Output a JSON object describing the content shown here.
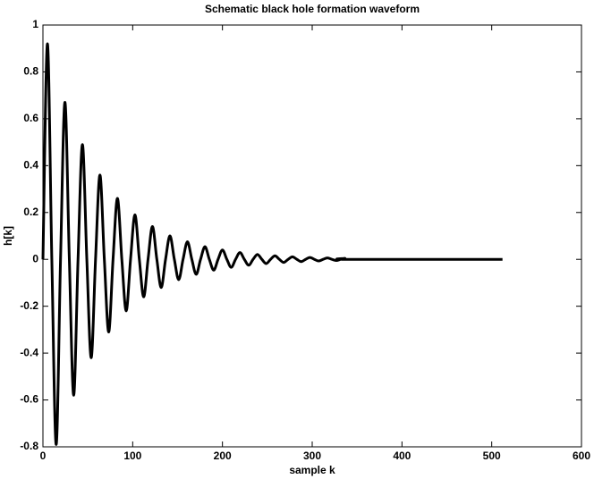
{
  "chart_data": {
    "type": "line",
    "title": "Schematic black hole formation waveform",
    "xlabel": "sample k",
    "ylabel": "h[k]",
    "color": "#000000",
    "x": [
      0,
      5,
      9.9,
      14.75,
      19.6,
      24.5,
      29.4,
      34.25,
      39.1,
      44,
      48.9,
      53.75,
      58.6,
      63.5,
      68.4,
      73.25,
      78.1,
      83,
      87.9,
      92.75,
      97.6,
      102.5,
      107.4,
      112.25,
      117.1,
      122,
      126.9,
      131.75,
      136.6,
      141.5,
      146.4,
      151.25,
      156.1,
      161,
      165.9,
      170.75,
      175.6,
      180.5,
      185.4,
      190.25,
      195.1,
      200,
      204.9,
      209.75,
      214.6,
      219.5,
      224.4,
      229.25,
      234.1,
      239,
      243.9,
      248.75,
      253.6,
      258.5,
      263.4,
      268.25,
      273.1,
      278,
      282.9,
      287.75,
      292.6,
      297.5,
      302.4,
      307.25,
      312.1,
      317,
      321.9,
      326.75,
      331.6,
      336.5,
      341.4,
      512
    ],
    "values": [
      0,
      0.92,
      0,
      -0.79,
      0,
      0.67,
      0,
      -0.58,
      0,
      0.49,
      0,
      -0.42,
      0,
      0.36,
      0,
      -0.31,
      0,
      0.26,
      0,
      -0.22,
      0,
      0.19,
      0,
      -0.16,
      0,
      0.14,
      0,
      -0.12,
      0,
      0.1,
      0,
      -0.087,
      0,
      0.075,
      0,
      -0.064,
      0,
      0.054,
      0,
      -0.046,
      0,
      0.04,
      0,
      -0.034,
      0,
      0.029,
      0,
      -0.025,
      0,
      0.021,
      0,
      -0.018,
      0,
      0.015,
      0,
      -0.013,
      0,
      0.011,
      0,
      -0.0096,
      0,
      0.008,
      0,
      -0.007,
      0,
      0.006,
      0,
      -0.005,
      0,
      0.004,
      0,
      0
    ],
    "xlim": [
      0,
      600
    ],
    "xticks": [
      0,
      100,
      200,
      300,
      400,
      500,
      600
    ],
    "ylim": [
      -0.8,
      1
    ],
    "yticks": [
      -0.8,
      -0.6,
      -0.4,
      -0.2,
      0,
      0.2,
      0.4,
      0.6,
      0.8,
      1
    ],
    "grid": false
  }
}
